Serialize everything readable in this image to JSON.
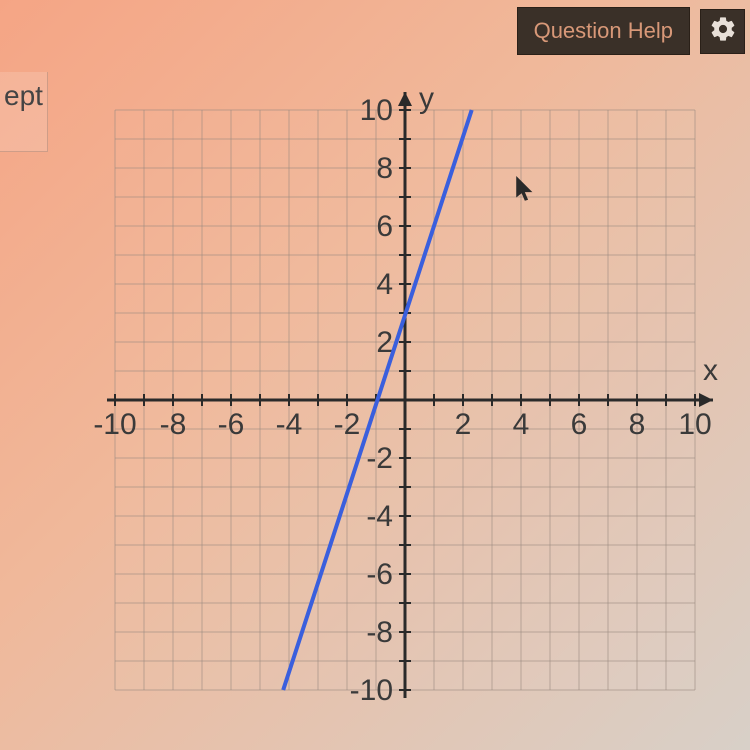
{
  "header": {
    "help_button": "Question Help"
  },
  "sidebar": {
    "fragment": "ept"
  },
  "chart": {
    "type": "line",
    "x_label": "x",
    "y_label": "y",
    "xlim": [
      -10,
      10
    ],
    "ylim": [
      -10,
      10
    ],
    "x_ticks": [
      -10,
      -8,
      -6,
      -4,
      -2,
      2,
      4,
      6,
      8,
      10
    ],
    "y_ticks": [
      -10,
      -8,
      -6,
      -4,
      -2,
      2,
      4,
      6,
      8,
      10
    ],
    "grid_step": 1,
    "grid_color": "#9a8a80",
    "axis_color": "#2a2a2a",
    "axis_width": 3,
    "line_color": "#3a5fdd",
    "line_width": 4,
    "line_points": [
      [
        -4.2,
        -10
      ],
      [
        2.3,
        10
      ]
    ],
    "background_overlay": "rgba(255,220,200,0.1)",
    "tick_fontsize": 30,
    "label_fontsize": 30,
    "text_color": "#3a3a3a"
  }
}
